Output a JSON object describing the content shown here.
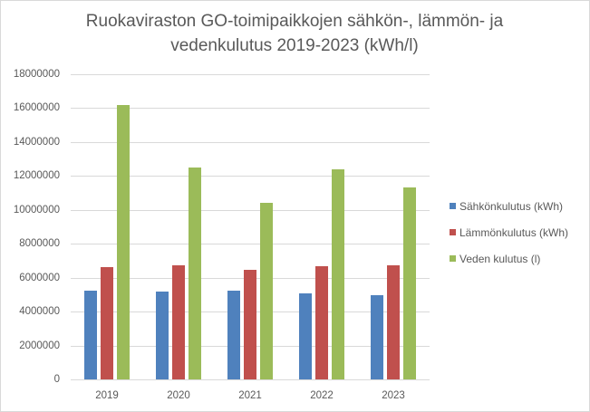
{
  "chart_data": {
    "type": "bar",
    "title": "Ruokaviraston GO-toimipaikkojen sähkön-, lämmön- ja vedenkulutus 2019-2023 (kWh/l)",
    "title_lines": [
      "Ruokaviraston GO-toimipaikkojen sähkön-, lämmön- ja",
      "vedenkulutus 2019-2023 (kWh/l)"
    ],
    "xlabel": "",
    "ylabel": "",
    "categories": [
      "2019",
      "2020",
      "2021",
      "2022",
      "2023"
    ],
    "series": [
      {
        "name": "Sähkönkulutus (kWh)",
        "color": "#4f81bd",
        "values": [
          5250000,
          5200000,
          5250000,
          5050000,
          4950000
        ]
      },
      {
        "name": "Lämmönkulutus (kWh)",
        "color": "#c0504d",
        "values": [
          6600000,
          6750000,
          6450000,
          6700000,
          6720000
        ]
      },
      {
        "name": "Veden kulutus (l)",
        "color": "#9bbb59",
        "values": [
          16200000,
          12500000,
          10400000,
          12400000,
          11350000
        ]
      }
    ],
    "ylim": [
      0,
      18000000
    ],
    "yticks": [
      "0",
      "2000000",
      "4000000",
      "6000000",
      "8000000",
      "10000000",
      "12000000",
      "14000000",
      "16000000",
      "18000000"
    ],
    "grid": true,
    "legend_position": "right"
  }
}
